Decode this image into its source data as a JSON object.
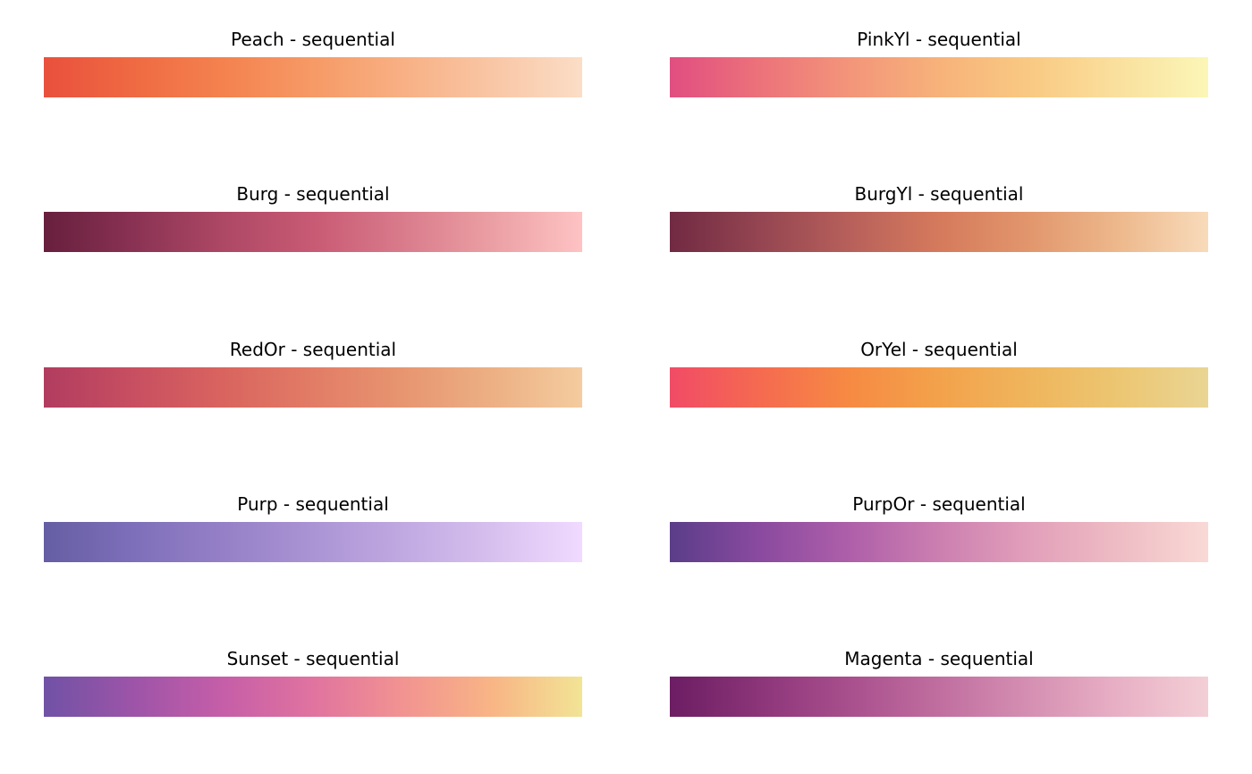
{
  "chart_data": [
    {
      "type": "palette",
      "title": "Peach - sequential",
      "colors": [
        "#e9503d",
        "#ef6a42",
        "#f4824f",
        "#f69a66",
        "#f8b084",
        "#f9c6a5",
        "#fbddc6"
      ]
    },
    {
      "type": "palette",
      "title": "PinkYl - sequential",
      "colors": [
        "#e14e81",
        "#ec727a",
        "#f3957a",
        "#f7b27a",
        "#f9c982",
        "#fae09e",
        "#fbf6b7"
      ]
    },
    {
      "type": "palette",
      "title": "Burg - sequential",
      "colors": [
        "#671f3d",
        "#8a3253",
        "#ad4865",
        "#c85a74",
        "#d97b8b",
        "#eb9fa4",
        "#fec3c4"
      ]
    },
    {
      "type": "palette",
      "title": "BurgYl - sequential",
      "colors": [
        "#712a43",
        "#944551",
        "#b7605b",
        "#d57a5c",
        "#e2966c",
        "#edb88c",
        "#f8dbba"
      ]
    },
    {
      "type": "palette",
      "title": "RedOr - sequential",
      "colors": [
        "#b13c5f",
        "#c84f61",
        "#d9645f",
        "#e27c66",
        "#e79570",
        "#ecb084",
        "#f4cc9f"
      ]
    },
    {
      "type": "palette",
      "title": "OrYel - sequential",
      "colors": [
        "#f14b66",
        "#f56a50",
        "#f68a43",
        "#f3a24b",
        "#efb55c",
        "#ecc672",
        "#ead594"
      ]
    },
    {
      "type": "palette",
      "title": "Purp - sequential",
      "colors": [
        "#655ea3",
        "#7e6fba",
        "#9580c7",
        "#ab94d4",
        "#c0a9e1",
        "#d7c0ee",
        "#f1daff"
      ]
    },
    {
      "type": "palette",
      "title": "PurpOr - sequential",
      "colors": [
        "#5a3d89",
        "#8a4a9f",
        "#ae5fa9",
        "#cb7fb0",
        "#e29fba",
        "#eebcc4",
        "#f9d9d5"
      ]
    },
    {
      "type": "palette",
      "title": "Sunset - sequential",
      "colors": [
        "#7052a5",
        "#9d54a8",
        "#c65ea8",
        "#e0739f",
        "#f29391",
        "#f8b585",
        "#f2e495"
      ]
    },
    {
      "type": "palette",
      "title": "Magenta - sequential",
      "colors": [
        "#6c1d63",
        "#8c3579",
        "#a84f8d",
        "#c06e9f",
        "#d58fb2",
        "#e8b0c5",
        "#f3cfd6"
      ]
    }
  ]
}
